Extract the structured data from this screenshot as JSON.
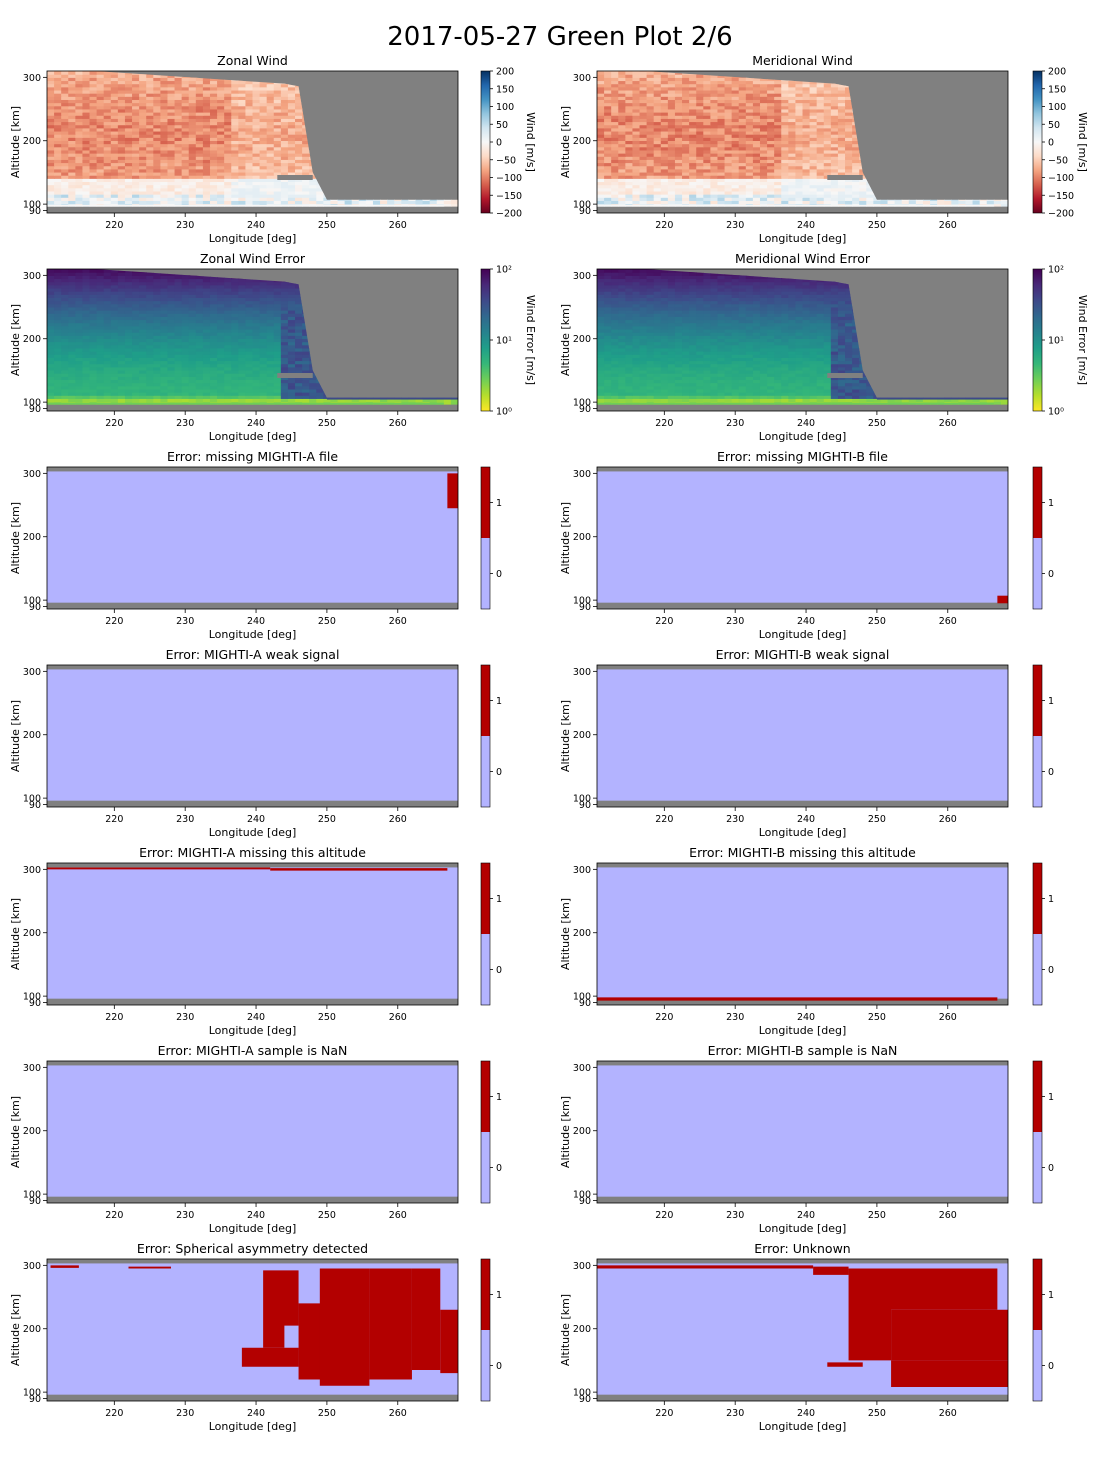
{
  "figure_title": "2017-05-27 Green Plot 2/6",
  "colors": {
    "nodata": "#808080",
    "flag_zero": "#b3b3ff",
    "flag_one": "#b30000",
    "wind_neg": "#ff9c7e",
    "wind_pos": "#9ec8e8"
  },
  "chart_data": [
    {
      "type": "heatmap",
      "title": "Zonal Wind",
      "xlabel": "Longitude [deg]",
      "ylabel": "Altitude [km]",
      "xlim": [
        210.5,
        268.5
      ],
      "ylim": [
        86,
        310
      ],
      "xticks": [
        220,
        230,
        240,
        250,
        260
      ],
      "yticks": [
        90,
        100,
        200,
        300
      ],
      "colorbar": {
        "kind": "diverging",
        "label": "Wind [m/s]",
        "ticks": [
          "200",
          "150",
          "100",
          "50",
          "0",
          "−50",
          "−100",
          "−150",
          "−200"
        ],
        "range": [
          -200,
          200
        ]
      },
      "field": "wind",
      "coverage": [
        [
          210.5,
          315
        ],
        [
          244,
          290
        ],
        [
          246,
          286
        ],
        [
          248,
          150
        ],
        [
          250,
          107
        ],
        [
          268.5,
          107
        ]
      ],
      "gap": [
        [
          243,
          146
        ],
        [
          248,
          146
        ],
        [
          248,
          138
        ],
        [
          243,
          138
        ]
      ]
    },
    {
      "type": "heatmap",
      "title": "Meridional Wind",
      "xlabel": "Longitude [deg]",
      "ylabel": "Altitude [km]",
      "xlim": [
        210.5,
        268.5
      ],
      "ylim": [
        86,
        310
      ],
      "xticks": [
        220,
        230,
        240,
        250,
        260
      ],
      "yticks": [
        90,
        100,
        200,
        300
      ],
      "colorbar": {
        "kind": "diverging",
        "label": "Wind [m/s]",
        "ticks": [
          "200",
          "150",
          "100",
          "50",
          "0",
          "−50",
          "−100",
          "−150",
          "−200"
        ],
        "range": [
          -200,
          200
        ]
      },
      "field": "wind",
      "coverage": [
        [
          210.5,
          315
        ],
        [
          244,
          290
        ],
        [
          246,
          286
        ],
        [
          248,
          150
        ],
        [
          250,
          107
        ],
        [
          268.5,
          107
        ]
      ],
      "gap": [
        [
          243,
          146
        ],
        [
          248,
          146
        ],
        [
          248,
          138
        ],
        [
          243,
          138
        ]
      ]
    },
    {
      "type": "heatmap",
      "title": "Zonal Wind Error",
      "xlabel": "Longitude [deg]",
      "ylabel": "Altitude [km]",
      "xlim": [
        210.5,
        268.5
      ],
      "ylim": [
        86,
        310
      ],
      "xticks": [
        220,
        230,
        240,
        250,
        260
      ],
      "yticks": [
        90,
        100,
        200,
        300
      ],
      "colorbar": {
        "kind": "viridis_log",
        "label": "Wind Error [m/s]",
        "ticks": [
          "10²",
          "10¹",
          "10⁰"
        ],
        "range": [
          1,
          100
        ]
      },
      "field": "error",
      "coverage": [
        [
          210.5,
          315
        ],
        [
          244,
          290
        ],
        [
          246,
          286
        ],
        [
          248,
          150
        ],
        [
          250,
          107
        ],
        [
          268.5,
          107
        ]
      ],
      "gap": [
        [
          243,
          146
        ],
        [
          248,
          146
        ],
        [
          248,
          138
        ],
        [
          243,
          138
        ]
      ]
    },
    {
      "type": "heatmap",
      "title": "Meridional Wind Error",
      "xlabel": "Longitude [deg]",
      "ylabel": "Altitude [km]",
      "xlim": [
        210.5,
        268.5
      ],
      "ylim": [
        86,
        310
      ],
      "xticks": [
        220,
        230,
        240,
        250,
        260
      ],
      "yticks": [
        90,
        100,
        200,
        300
      ],
      "colorbar": {
        "kind": "viridis_log",
        "label": "Wind Error [m/s]",
        "ticks": [
          "10²",
          "10¹",
          "10⁰"
        ],
        "range": [
          1,
          100
        ]
      },
      "field": "error",
      "coverage": [
        [
          210.5,
          315
        ],
        [
          244,
          290
        ],
        [
          246,
          286
        ],
        [
          248,
          150
        ],
        [
          250,
          107
        ],
        [
          268.5,
          107
        ]
      ],
      "gap": [
        [
          243,
          146
        ],
        [
          248,
          146
        ],
        [
          248,
          138
        ],
        [
          243,
          138
        ]
      ]
    },
    {
      "type": "heatmap",
      "title": "Error: missing MIGHTI-A file",
      "xlabel": "Longitude [deg]",
      "ylabel": "Altitude [km]",
      "xlim": [
        210.5,
        268.5
      ],
      "ylim": [
        86,
        310
      ],
      "xticks": [
        220,
        230,
        240,
        250,
        260
      ],
      "yticks": [
        90,
        100,
        200,
        300
      ],
      "colorbar": {
        "kind": "flag",
        "ticks": [
          "1",
          "0"
        ],
        "range": [
          -0.5,
          1.5
        ]
      },
      "field": "flag",
      "flagged": [
        [
          [
            267,
            300
          ],
          [
            268.5,
            300
          ],
          [
            268.5,
            245
          ],
          [
            267,
            245
          ]
        ]
      ]
    },
    {
      "type": "heatmap",
      "title": "Error: missing MIGHTI-B file",
      "xlabel": "Longitude [deg]",
      "ylabel": "Altitude [km]",
      "xlim": [
        210.5,
        268.5
      ],
      "ylim": [
        86,
        310
      ],
      "xticks": [
        220,
        230,
        240,
        250,
        260
      ],
      "yticks": [
        90,
        100,
        200,
        300
      ],
      "colorbar": {
        "kind": "flag",
        "ticks": [
          "1",
          "0"
        ],
        "range": [
          -0.5,
          1.5
        ]
      },
      "field": "flag",
      "flagged": [
        [
          [
            267,
            107
          ],
          [
            268.5,
            107
          ],
          [
            268.5,
            95
          ],
          [
            267,
            95
          ]
        ]
      ]
    },
    {
      "type": "heatmap",
      "title": "Error: MIGHTI-A weak signal",
      "xlabel": "Longitude [deg]",
      "ylabel": "Altitude [km]",
      "xlim": [
        210.5,
        268.5
      ],
      "ylim": [
        86,
        310
      ],
      "xticks": [
        220,
        230,
        240,
        250,
        260
      ],
      "yticks": [
        90,
        100,
        200,
        300
      ],
      "colorbar": {
        "kind": "flag",
        "ticks": [
          "1",
          "0"
        ],
        "range": [
          -0.5,
          1.5
        ]
      },
      "field": "flag",
      "flagged": []
    },
    {
      "type": "heatmap",
      "title": "Error: MIGHTI-B weak signal",
      "xlabel": "Longitude [deg]",
      "ylabel": "Altitude [km]",
      "xlim": [
        210.5,
        268.5
      ],
      "ylim": [
        86,
        310
      ],
      "xticks": [
        220,
        230,
        240,
        250,
        260
      ],
      "yticks": [
        90,
        100,
        200,
        300
      ],
      "colorbar": {
        "kind": "flag",
        "ticks": [
          "1",
          "0"
        ],
        "range": [
          -0.5,
          1.5
        ]
      },
      "field": "flag",
      "flagged": []
    },
    {
      "type": "heatmap",
      "title": "Error: MIGHTI-A missing this altitude",
      "xlabel": "Longitude [deg]",
      "ylabel": "Altitude [km]",
      "xlim": [
        210.5,
        268.5
      ],
      "ylim": [
        86,
        310
      ],
      "xticks": [
        220,
        230,
        240,
        250,
        260
      ],
      "yticks": [
        90,
        100,
        200,
        300
      ],
      "colorbar": {
        "kind": "flag",
        "ticks": [
          "1",
          "0"
        ],
        "range": [
          -0.5,
          1.5
        ]
      },
      "field": "flag",
      "flagged": [
        [
          [
            210.5,
            303
          ],
          [
            242,
            303
          ],
          [
            242,
            300
          ],
          [
            210.5,
            300
          ]
        ],
        [
          [
            242,
            302
          ],
          [
            267,
            302
          ],
          [
            267,
            298
          ],
          [
            242,
            298
          ]
        ]
      ]
    },
    {
      "type": "heatmap",
      "title": "Error: MIGHTI-B missing this altitude",
      "xlabel": "Longitude [deg]",
      "ylabel": "Altitude [km]",
      "xlim": [
        210.5,
        268.5
      ],
      "ylim": [
        86,
        310
      ],
      "xticks": [
        220,
        230,
        240,
        250,
        260
      ],
      "yticks": [
        90,
        100,
        200,
        300
      ],
      "colorbar": {
        "kind": "flag",
        "ticks": [
          "1",
          "0"
        ],
        "range": [
          -0.5,
          1.5
        ]
      },
      "field": "flag",
      "flagged": [
        [
          [
            210.5,
            98
          ],
          [
            267,
            98
          ],
          [
            267,
            93
          ],
          [
            210.5,
            93
          ]
        ]
      ]
    },
    {
      "type": "heatmap",
      "title": "Error: MIGHTI-A sample is NaN",
      "xlabel": "Longitude [deg]",
      "ylabel": "Altitude [km]",
      "xlim": [
        210.5,
        268.5
      ],
      "ylim": [
        86,
        310
      ],
      "xticks": [
        220,
        230,
        240,
        250,
        260
      ],
      "yticks": [
        90,
        100,
        200,
        300
      ],
      "colorbar": {
        "kind": "flag",
        "ticks": [
          "1",
          "0"
        ],
        "range": [
          -0.5,
          1.5
        ]
      },
      "field": "flag",
      "flagged": []
    },
    {
      "type": "heatmap",
      "title": "Error: MIGHTI-B sample is NaN",
      "xlabel": "Longitude [deg]",
      "ylabel": "Altitude [km]",
      "xlim": [
        210.5,
        268.5
      ],
      "ylim": [
        86,
        310
      ],
      "xticks": [
        220,
        230,
        240,
        250,
        260
      ],
      "yticks": [
        90,
        100,
        200,
        300
      ],
      "colorbar": {
        "kind": "flag",
        "ticks": [
          "1",
          "0"
        ],
        "range": [
          -0.5,
          1.5
        ]
      },
      "field": "flag",
      "flagged": []
    },
    {
      "type": "heatmap",
      "title": "Error: Spherical asymmetry detected",
      "xlabel": "Longitude [deg]",
      "ylabel": "Altitude [km]",
      "xlim": [
        210.5,
        268.5
      ],
      "ylim": [
        86,
        310
      ],
      "xticks": [
        220,
        230,
        240,
        250,
        260
      ],
      "yticks": [
        90,
        100,
        200,
        300
      ],
      "colorbar": {
        "kind": "flag",
        "ticks": [
          "1",
          "0"
        ],
        "range": [
          -0.5,
          1.5
        ]
      },
      "field": "flag",
      "flagged": [
        [
          [
            241,
            292
          ],
          [
            246,
            292
          ],
          [
            246,
            205
          ],
          [
            244,
            205
          ],
          [
            244,
            170
          ],
          [
            241,
            170
          ]
        ],
        [
          [
            238,
            170
          ],
          [
            246,
            170
          ],
          [
            246,
            140
          ],
          [
            238,
            140
          ]
        ],
        [
          [
            246,
            240
          ],
          [
            250,
            240
          ],
          [
            250,
            120
          ],
          [
            246,
            120
          ]
        ],
        [
          [
            249,
            295
          ],
          [
            256,
            295
          ],
          [
            256,
            110
          ],
          [
            249,
            110
          ]
        ],
        [
          [
            256,
            295
          ],
          [
            262,
            295
          ],
          [
            262,
            120
          ],
          [
            256,
            120
          ]
        ],
        [
          [
            262,
            295
          ],
          [
            266,
            295
          ],
          [
            266,
            135
          ],
          [
            262,
            135
          ]
        ],
        [
          [
            266,
            230
          ],
          [
            268.5,
            230
          ],
          [
            268.5,
            130
          ],
          [
            266,
            130
          ]
        ],
        [
          [
            211,
            300
          ],
          [
            215,
            300
          ],
          [
            215,
            296
          ],
          [
            211,
            296
          ]
        ],
        [
          [
            222,
            298
          ],
          [
            228,
            298
          ],
          [
            228,
            295
          ],
          [
            222,
            295
          ]
        ]
      ]
    },
    {
      "type": "heatmap",
      "title": "Error: Unknown",
      "xlabel": "Longitude [deg]",
      "ylabel": "Altitude [km]",
      "xlim": [
        210.5,
        268.5
      ],
      "ylim": [
        86,
        310
      ],
      "xticks": [
        220,
        230,
        240,
        250,
        260
      ],
      "yticks": [
        90,
        100,
        200,
        300
      ],
      "colorbar": {
        "kind": "flag",
        "ticks": [
          "1",
          "0"
        ],
        "range": [
          -0.5,
          1.5
        ]
      },
      "field": "flag",
      "flagged": [
        [
          [
            210.5,
            300
          ],
          [
            241,
            300
          ],
          [
            241,
            295
          ],
          [
            210.5,
            295
          ]
        ],
        [
          [
            241,
            298
          ],
          [
            246,
            298
          ],
          [
            246,
            285
          ],
          [
            241,
            285
          ]
        ],
        [
          [
            246,
            295
          ],
          [
            267,
            295
          ],
          [
            267,
            230
          ],
          [
            252,
            230
          ],
          [
            252,
            150
          ],
          [
            246,
            150
          ]
        ],
        [
          [
            252,
            150
          ],
          [
            268.5,
            150
          ],
          [
            268.5,
            108
          ],
          [
            252,
            108
          ]
        ],
        [
          [
            252,
            230
          ],
          [
            268.5,
            230
          ],
          [
            268.5,
            150
          ],
          [
            252,
            150
          ]
        ],
        [
          [
            243,
            147
          ],
          [
            248,
            147
          ],
          [
            248,
            140
          ],
          [
            243,
            140
          ]
        ]
      ]
    }
  ]
}
